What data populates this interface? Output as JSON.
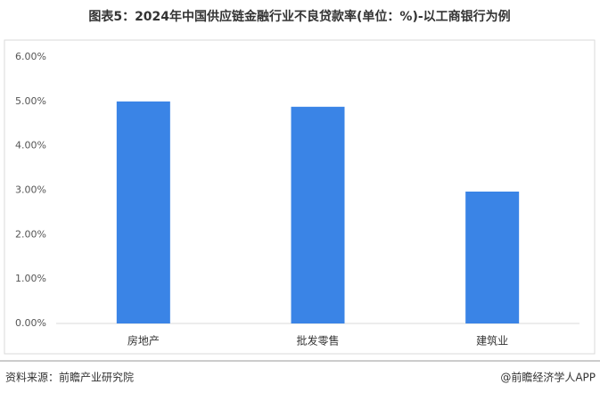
{
  "chart_data": {
    "type": "bar",
    "title": "图表5：2024年中国供应链金融行业不良贷款率(单位：%)-以工商银行为例",
    "categories": [
      "房地产",
      "批发零售",
      "建筑业"
    ],
    "values": [
      5.0,
      4.88,
      2.97
    ],
    "color": "#3a84e6",
    "ylim": [
      0,
      6
    ],
    "yticks": [
      {
        "value": 0,
        "label": "0.00%"
      },
      {
        "value": 1,
        "label": "1.00%"
      },
      {
        "value": 2,
        "label": "2.00%"
      },
      {
        "value": 3,
        "label": "3.00%"
      },
      {
        "value": 4,
        "label": "4.00%"
      },
      {
        "value": 5,
        "label": "5.00%"
      },
      {
        "value": 6,
        "label": "6.00%"
      }
    ],
    "grid": false,
    "source": "资料来源：前瞻产业研究院",
    "credit": "@前瞻经济学人APP"
  }
}
